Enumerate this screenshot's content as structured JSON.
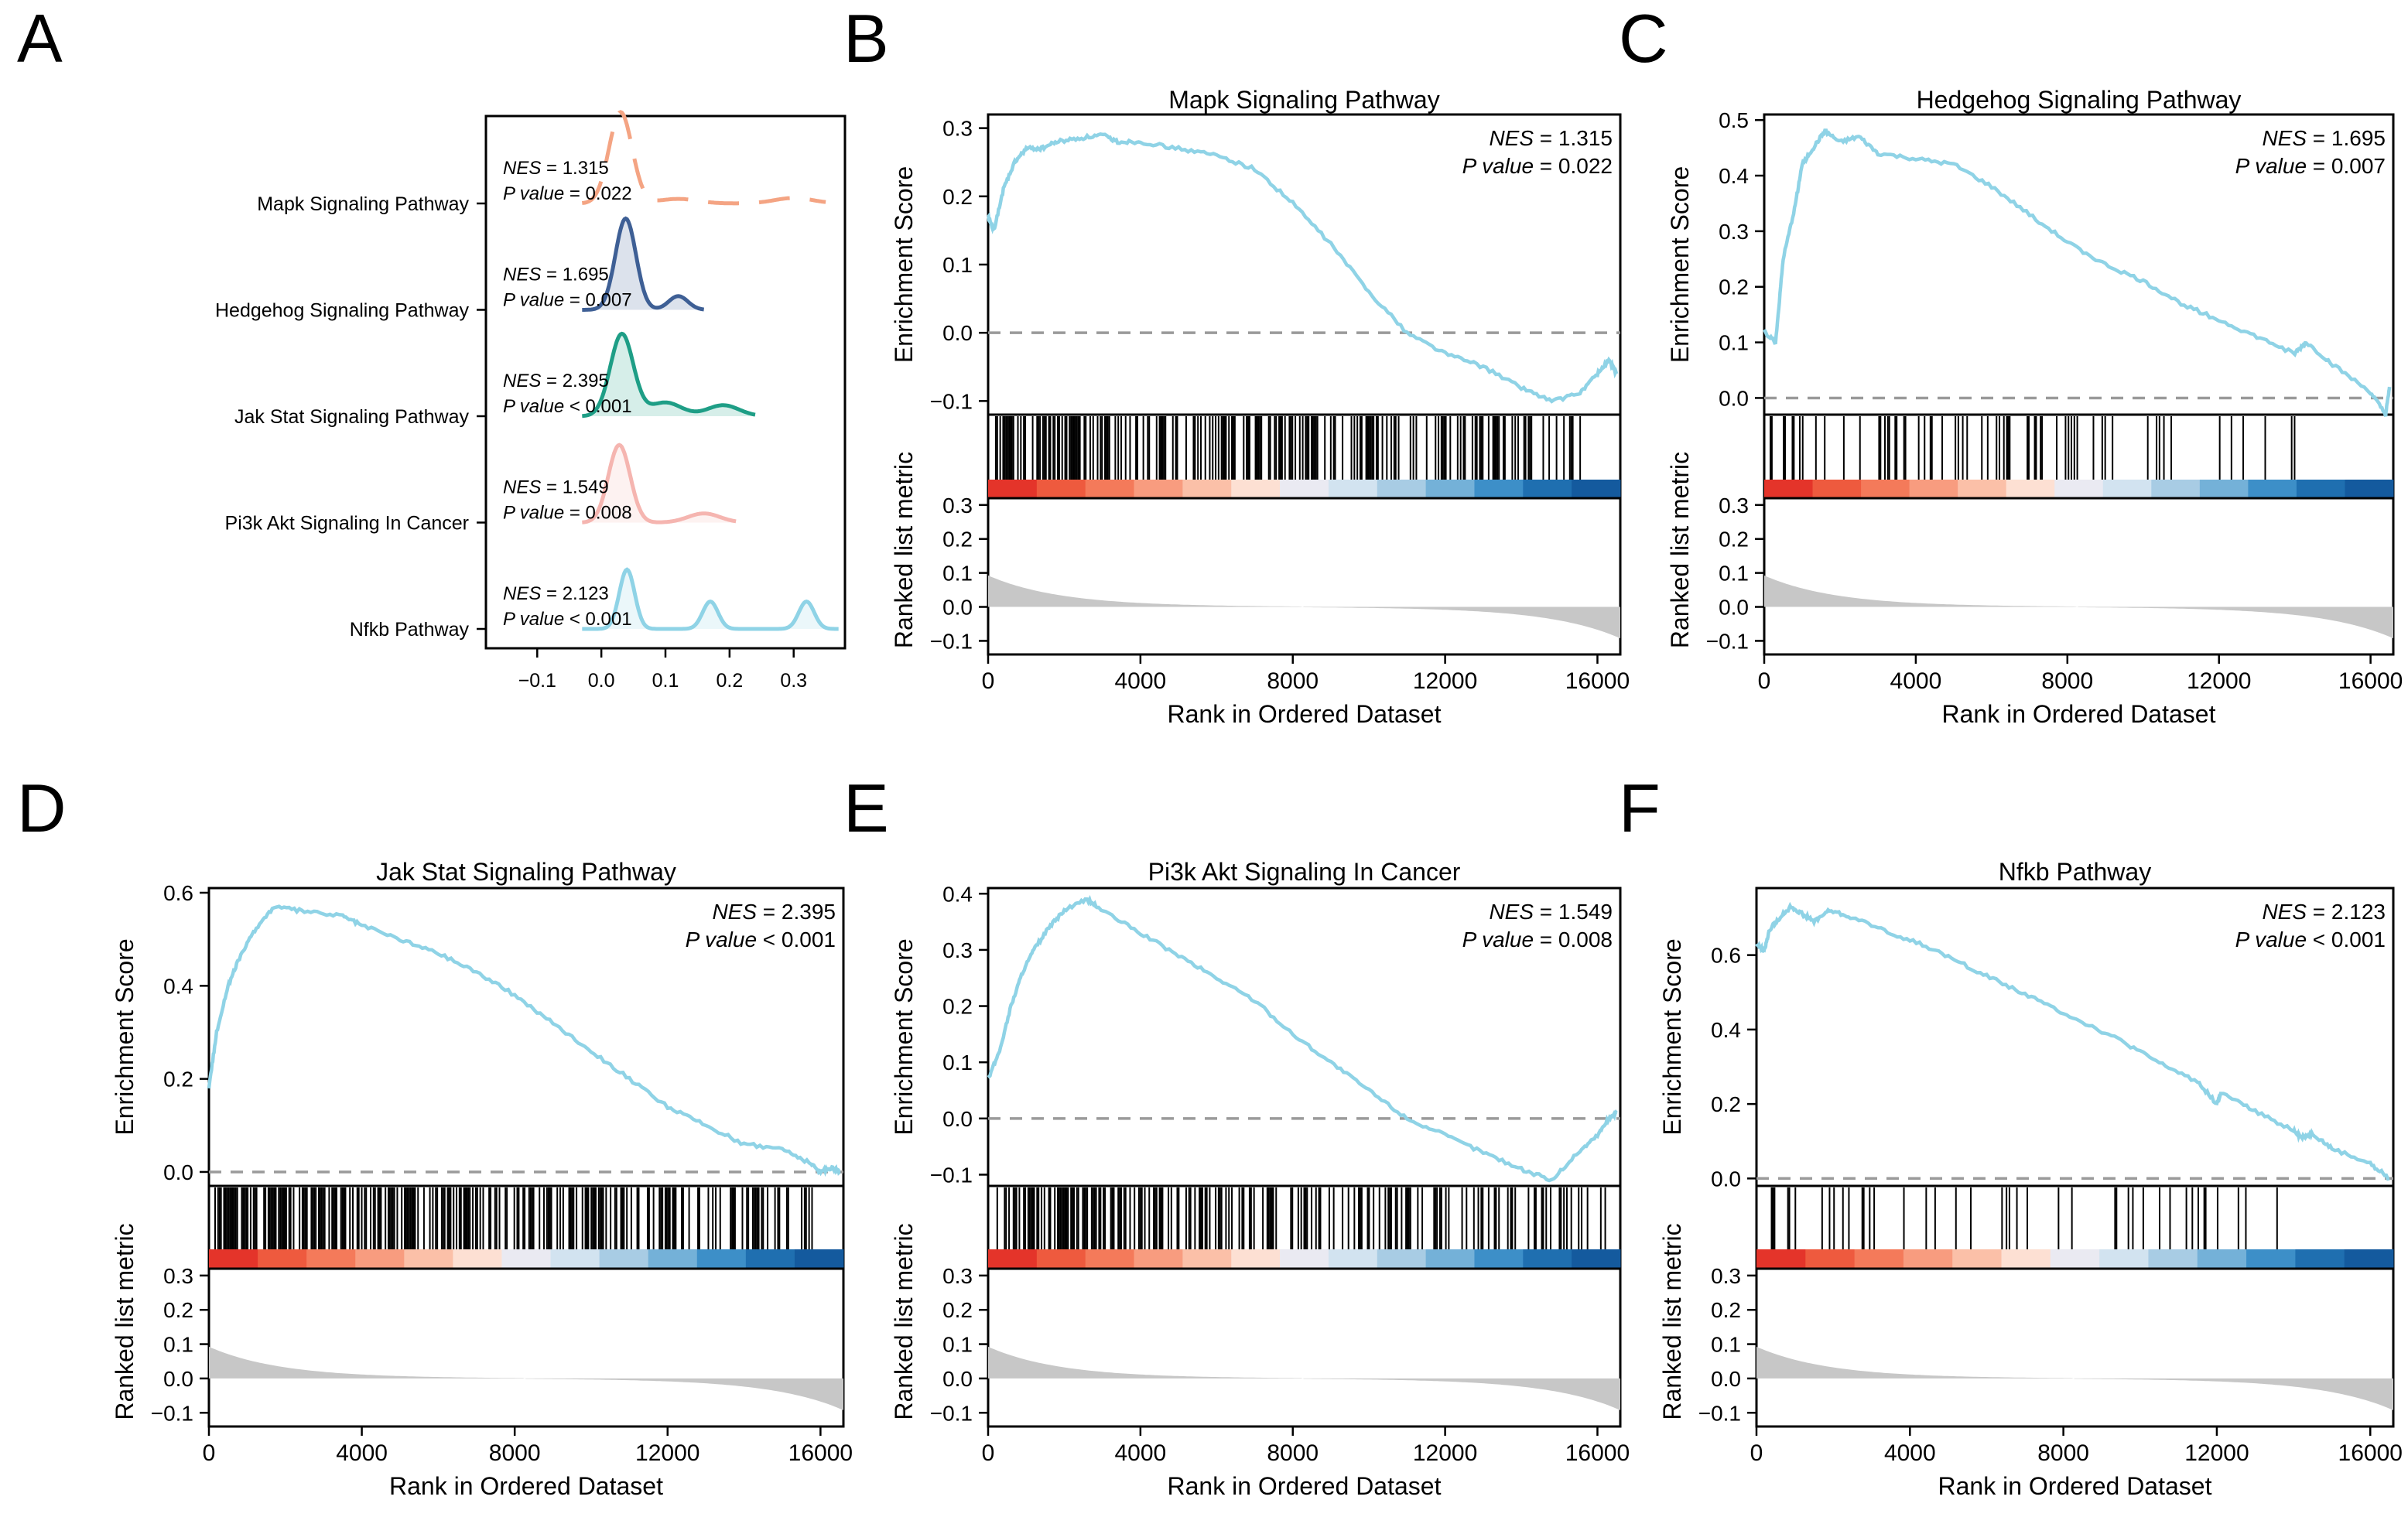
{
  "figure": {
    "panel_letters": [
      "A",
      "B",
      "C",
      "D",
      "E",
      "F"
    ]
  },
  "colors": {
    "es_line": "#8fd3e6",
    "zero_line": "#9a9a9a",
    "metric_fill": "#c7c7c7",
    "hit_bar": "#000000",
    "axis": "#000000",
    "ridge_mapk": "#f4a483",
    "ridge_hedgehog": "#3e5f95",
    "ridge_jak": "#1e9e86",
    "ridge_pi3k": "#f5b5b0",
    "ridge_nfkb": "#8fd3e6"
  },
  "chart_data": [
    {
      "id": "A",
      "type": "ridge",
      "xticks": [
        "−0.1",
        "0.0",
        "0.1",
        "0.2",
        "0.3"
      ],
      "xtick_values": [
        -0.1,
        0.0,
        0.1,
        0.2,
        0.3
      ],
      "xlim": [
        -0.18,
        0.38
      ],
      "ridges": [
        {
          "name": "Mapk Signaling Pathway",
          "nes": "1.315",
          "p_op": "=",
          "p": "0.022",
          "color_key": "ridge_mapk",
          "fill": false,
          "dashed": true,
          "peaks": [
            [
              0.03,
              1.0,
              0.018
            ],
            [
              0.12,
              0.05,
              0.03
            ],
            [
              0.3,
              0.06,
              0.03
            ]
          ],
          "range": [
            -0.03,
            0.35
          ]
        },
        {
          "name": "Hedgehog Signaling Pathway",
          "nes": "1.695",
          "p_op": "=",
          "p": "0.007",
          "color_key": "ridge_hedgehog",
          "fill": true,
          "dashed": false,
          "peaks": [
            [
              0.038,
              1.0,
              0.016
            ],
            [
              0.12,
              0.15,
              0.015
            ]
          ],
          "range": [
            -0.03,
            0.16
          ]
        },
        {
          "name": "Jak Stat Signaling Pathway",
          "nes": "2.395",
          "p_op": "<",
          "p": "0.001",
          "color_key": "ridge_jak",
          "fill": true,
          "dashed": false,
          "peaks": [
            [
              0.032,
              0.9,
              0.018
            ],
            [
              0.1,
              0.15,
              0.025
            ],
            [
              0.19,
              0.12,
              0.025
            ]
          ],
          "range": [
            -0.03,
            0.24
          ]
        },
        {
          "name": "Pi3k Akt Signaling In Cancer",
          "nes": "1.549",
          "p_op": "=",
          "p": "0.008",
          "color_key": "ridge_pi3k",
          "fill": true,
          "dashed": false,
          "peaks": [
            [
              0.028,
              0.85,
              0.017
            ],
            [
              0.16,
              0.1,
              0.025
            ]
          ],
          "range": [
            -0.03,
            0.21
          ]
        },
        {
          "name": "Nfkb Pathway",
          "nes": "2.123",
          "p_op": "<",
          "p": "0.001",
          "color_key": "ridge_nfkb",
          "fill": true,
          "dashed": false,
          "peaks": [
            [
              0.04,
              0.65,
              0.012
            ],
            [
              0.17,
              0.3,
              0.012
            ],
            [
              0.32,
              0.3,
              0.012
            ]
          ],
          "range": [
            -0.03,
            0.37
          ]
        }
      ]
    },
    {
      "id": "B",
      "type": "gsea",
      "title": "Mapk Signaling Pathway",
      "nes": "1.315",
      "p_op": "=",
      "p": "0.022",
      "es_ylim": [
        -0.12,
        0.32
      ],
      "es_yticks": [
        -0.1,
        0.0,
        0.1,
        0.2,
        0.3
      ],
      "es_ytick_labels": [
        "−0.1",
        "0.0",
        "0.1",
        "0.2",
        "0.3"
      ],
      "es_points": [
        [
          0,
          0.17
        ],
        [
          150,
          0.15
        ],
        [
          400,
          0.21
        ],
        [
          700,
          0.25
        ],
        [
          1000,
          0.27
        ],
        [
          1400,
          0.27
        ],
        [
          1800,
          0.28
        ],
        [
          2400,
          0.285
        ],
        [
          3000,
          0.29
        ],
        [
          3400,
          0.28
        ],
        [
          4000,
          0.28
        ],
        [
          5000,
          0.27
        ],
        [
          6000,
          0.26
        ],
        [
          7000,
          0.24
        ],
        [
          8000,
          0.19
        ],
        [
          9000,
          0.13
        ],
        [
          10000,
          0.06
        ],
        [
          11000,
          0.0
        ],
        [
          12000,
          -0.03
        ],
        [
          13000,
          -0.05
        ],
        [
          14000,
          -0.08
        ],
        [
          14800,
          -0.1
        ],
        [
          15500,
          -0.09
        ],
        [
          16000,
          -0.06
        ],
        [
          16300,
          -0.04
        ],
        [
          16500,
          -0.06
        ]
      ],
      "hits_density": 0.55,
      "hits_end": 0.95
    },
    {
      "id": "C",
      "type": "gsea",
      "title": "Hedgehog Signaling Pathway",
      "nes": "1.695",
      "p_op": "=",
      "p": "0.007",
      "es_ylim": [
        -0.03,
        0.51
      ],
      "es_yticks": [
        0.0,
        0.1,
        0.2,
        0.3,
        0.4,
        0.5
      ],
      "es_ytick_labels": [
        "0.0",
        "0.1",
        "0.2",
        "0.3",
        "0.4",
        "0.5"
      ],
      "es_points": [
        [
          0,
          0.12
        ],
        [
          300,
          0.1
        ],
        [
          500,
          0.25
        ],
        [
          800,
          0.34
        ],
        [
          1000,
          0.42
        ],
        [
          1300,
          0.45
        ],
        [
          1600,
          0.48
        ],
        [
          2000,
          0.46
        ],
        [
          2500,
          0.47
        ],
        [
          3000,
          0.44
        ],
        [
          4000,
          0.43
        ],
        [
          5000,
          0.42
        ],
        [
          6000,
          0.38
        ],
        [
          7000,
          0.33
        ],
        [
          8000,
          0.28
        ],
        [
          9000,
          0.24
        ],
        [
          10000,
          0.21
        ],
        [
          11000,
          0.17
        ],
        [
          12000,
          0.14
        ],
        [
          13000,
          0.11
        ],
        [
          14000,
          0.08
        ],
        [
          14300,
          0.1
        ],
        [
          15000,
          0.06
        ],
        [
          16000,
          0.01
        ],
        [
          16400,
          -0.03
        ],
        [
          16500,
          0.02
        ]
      ],
      "hits_density": 0.25,
      "hits_end": 0.88
    },
    {
      "id": "D",
      "type": "gsea",
      "title": "Jak Stat Signaling Pathway",
      "nes": "2.395",
      "p_op": "<",
      "p": "0.001",
      "es_ylim": [
        -0.03,
        0.61
      ],
      "es_yticks": [
        0.0,
        0.2,
        0.4,
        0.6
      ],
      "es_ytick_labels": [
        "0.0",
        "0.2",
        "0.4",
        "0.6"
      ],
      "es_points": [
        [
          0,
          0.18
        ],
        [
          200,
          0.3
        ],
        [
          500,
          0.4
        ],
        [
          800,
          0.46
        ],
        [
          1200,
          0.52
        ],
        [
          1700,
          0.57
        ],
        [
          2500,
          0.56
        ],
        [
          3500,
          0.55
        ],
        [
          4000,
          0.53
        ],
        [
          5000,
          0.5
        ],
        [
          6000,
          0.47
        ],
        [
          7000,
          0.43
        ],
        [
          8000,
          0.38
        ],
        [
          9000,
          0.32
        ],
        [
          10000,
          0.26
        ],
        [
          11000,
          0.2
        ],
        [
          12000,
          0.14
        ],
        [
          13000,
          0.1
        ],
        [
          14000,
          0.06
        ],
        [
          15000,
          0.05
        ],
        [
          15700,
          0.02
        ],
        [
          16000,
          0.0
        ],
        [
          16300,
          0.01
        ],
        [
          16500,
          0.0
        ]
      ],
      "hits_density": 0.6,
      "hits_end": 0.97
    },
    {
      "id": "E",
      "type": "gsea",
      "title": "Pi3k Akt Signaling In Cancer",
      "nes": "1.549",
      "p_op": "=",
      "p": "0.008",
      "es_ylim": [
        -0.12,
        0.41
      ],
      "es_yticks": [
        -0.1,
        0.0,
        0.1,
        0.2,
        0.3,
        0.4
      ],
      "es_ytick_labels": [
        "−0.1",
        "0.0",
        "0.1",
        "0.2",
        "0.3",
        "0.4"
      ],
      "es_points": [
        [
          0,
          0.07
        ],
        [
          300,
          0.12
        ],
        [
          600,
          0.2
        ],
        [
          900,
          0.26
        ],
        [
          1200,
          0.3
        ],
        [
          1600,
          0.34
        ],
        [
          2000,
          0.37
        ],
        [
          2600,
          0.39
        ],
        [
          3000,
          0.37
        ],
        [
          4000,
          0.33
        ],
        [
          5000,
          0.29
        ],
        [
          6000,
          0.25
        ],
        [
          7000,
          0.21
        ],
        [
          8000,
          0.15
        ],
        [
          9000,
          0.1
        ],
        [
          10000,
          0.05
        ],
        [
          11000,
          0.0
        ],
        [
          12000,
          -0.03
        ],
        [
          13000,
          -0.06
        ],
        [
          14000,
          -0.09
        ],
        [
          14800,
          -0.11
        ],
        [
          15500,
          -0.06
        ],
        [
          16000,
          -0.03
        ],
        [
          16300,
          0.0
        ],
        [
          16500,
          0.01
        ]
      ],
      "hits_density": 0.5,
      "hits_end": 0.99
    },
    {
      "id": "F",
      "type": "gsea",
      "title": "Nfkb Pathway",
      "nes": "2.123",
      "p_op": "<",
      "p": "0.001",
      "es_ylim": [
        -0.02,
        0.78
      ],
      "es_yticks": [
        0.0,
        0.2,
        0.4,
        0.6
      ],
      "es_ytick_labels": [
        "0.0",
        "0.2",
        "0.4",
        "0.6"
      ],
      "es_points": [
        [
          0,
          0.63
        ],
        [
          200,
          0.61
        ],
        [
          350,
          0.67
        ],
        [
          600,
          0.7
        ],
        [
          900,
          0.73
        ],
        [
          1200,
          0.71
        ],
        [
          1500,
          0.69
        ],
        [
          1900,
          0.72
        ],
        [
          2500,
          0.7
        ],
        [
          3500,
          0.66
        ],
        [
          4500,
          0.62
        ],
        [
          5500,
          0.57
        ],
        [
          6500,
          0.52
        ],
        [
          7500,
          0.47
        ],
        [
          8500,
          0.42
        ],
        [
          9500,
          0.37
        ],
        [
          10500,
          0.31
        ],
        [
          11500,
          0.26
        ],
        [
          12000,
          0.2
        ],
        [
          12100,
          0.23
        ],
        [
          13000,
          0.18
        ],
        [
          14000,
          0.13
        ],
        [
          14200,
          0.11
        ],
        [
          14500,
          0.12
        ],
        [
          15000,
          0.08
        ],
        [
          16000,
          0.04
        ],
        [
          16500,
          0.0
        ]
      ],
      "hits_density": 0.12,
      "hits_end": 0.85
    }
  ],
  "gsea_common": {
    "es_ylabel": "Enrichment Score",
    "metric_ylabel": "Ranked list metric",
    "xlabel": "Rank in Ordered Dataset",
    "xticks": [
      0,
      4000,
      8000,
      12000,
      16000
    ],
    "xtick_labels": [
      "0",
      "4000",
      "8000",
      "12000",
      "16000"
    ],
    "xlim": [
      0,
      16600
    ],
    "metric_ylim": [
      -0.14,
      0.32
    ],
    "metric_yticks": [
      -0.1,
      0.0,
      0.1,
      0.2,
      0.3
    ],
    "metric_ytick_labels": [
      "−0.1",
      "0.0",
      "0.1",
      "0.2",
      "0.3"
    ],
    "nes_label": "NES",
    "p_label": "P value"
  }
}
